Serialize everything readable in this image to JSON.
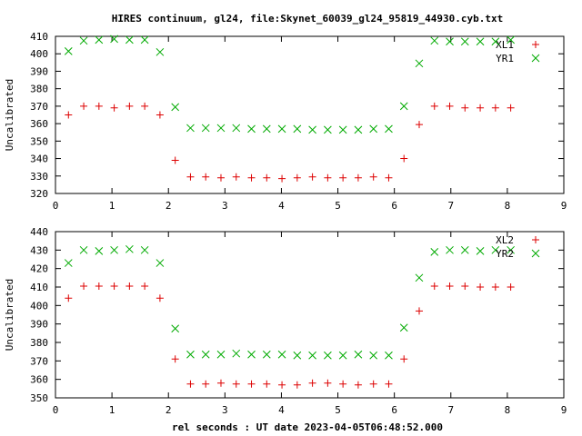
{
  "chart_data": {
    "title": "HIRES continuum, gl24, file:Skynet_60039_gl24_95819_44930.cyb.txt",
    "xlabel": "rel seconds : UT date 2023-04-05T06:48:52.000",
    "panels": [
      {
        "type": "scatter",
        "ylabel": "Uncalibrated",
        "xlim": [
          0,
          9
        ],
        "ylim": [
          320,
          410
        ],
        "xticks": [
          0,
          1,
          2,
          3,
          4,
          5,
          6,
          7,
          8,
          9
        ],
        "yticks": [
          320,
          330,
          340,
          350,
          360,
          370,
          380,
          390,
          400,
          410
        ],
        "legend": "top-right",
        "series": [
          {
            "name": "XL1",
            "marker": "plus",
            "color": "#dd0000",
            "x": [
              0.23,
              0.5,
              0.77,
              1.04,
              1.31,
              1.58,
              1.85,
              2.12,
              2.39,
              2.66,
              2.93,
              3.2,
              3.47,
              3.74,
              4.01,
              4.28,
              4.55,
              4.82,
              5.09,
              5.36,
              5.63,
              5.9,
              6.17,
              6.44,
              6.71,
              6.98,
              7.25,
              7.52,
              7.79,
              8.06
            ],
            "y": [
              365,
              370,
              370,
              369,
              370,
              370,
              365,
              339,
              329.5,
              329.5,
              329,
              329.5,
              329,
              329,
              328.5,
              329,
              329.5,
              329,
              329,
              329,
              329.5,
              329,
              340,
              359.5,
              370,
              370,
              369,
              369,
              369,
              369
            ]
          },
          {
            "name": "YR1",
            "marker": "cross",
            "color": "#00aa00",
            "x": [
              0.23,
              0.5,
              0.77,
              1.04,
              1.31,
              1.58,
              1.85,
              2.12,
              2.39,
              2.66,
              2.93,
              3.2,
              3.47,
              3.74,
              4.01,
              4.28,
              4.55,
              4.82,
              5.09,
              5.36,
              5.63,
              5.9,
              6.17,
              6.44,
              6.71,
              6.98,
              7.25,
              7.52,
              7.79,
              8.06
            ],
            "y": [
              401.5,
              407.5,
              408,
              408.5,
              408,
              408,
              401,
              369.5,
              357.5,
              357.5,
              357.5,
              357.5,
              357,
              357,
              357,
              357,
              356.5,
              356.5,
              356.5,
              356.5,
              357,
              357,
              370,
              394.5,
              407.5,
              407,
              407,
              407,
              407,
              408
            ]
          }
        ]
      },
      {
        "type": "scatter",
        "ylabel": "Uncalibrated",
        "xlim": [
          0,
          9
        ],
        "ylim": [
          350,
          440
        ],
        "xticks": [
          0,
          1,
          2,
          3,
          4,
          5,
          6,
          7,
          8,
          9
        ],
        "yticks": [
          350,
          360,
          370,
          380,
          390,
          400,
          410,
          420,
          430,
          440
        ],
        "legend": "top-right",
        "series": [
          {
            "name": "XL2",
            "marker": "plus",
            "color": "#dd0000",
            "x": [
              0.23,
              0.5,
              0.77,
              1.04,
              1.31,
              1.58,
              1.85,
              2.12,
              2.39,
              2.66,
              2.93,
              3.2,
              3.47,
              3.74,
              4.01,
              4.28,
              4.55,
              4.82,
              5.09,
              5.36,
              5.63,
              5.9,
              6.17,
              6.44,
              6.71,
              6.98,
              7.25,
              7.52,
              7.79,
              8.06
            ],
            "y": [
              404,
              410.5,
              410.5,
              410.5,
              410.5,
              410.5,
              404,
              371,
              357.5,
              357.5,
              358,
              357.5,
              357.5,
              357.5,
              357,
              357,
              358,
              358,
              357.5,
              357,
              357.5,
              357.5,
              371,
              397,
              410.5,
              410.5,
              410.5,
              410,
              410,
              410
            ]
          },
          {
            "name": "YR2",
            "marker": "cross",
            "color": "#00aa00",
            "x": [
              0.23,
              0.5,
              0.77,
              1.04,
              1.31,
              1.58,
              1.85,
              2.12,
              2.39,
              2.66,
              2.93,
              3.2,
              3.47,
              3.74,
              4.01,
              4.28,
              4.55,
              4.82,
              5.09,
              5.36,
              5.63,
              5.9,
              6.17,
              6.44,
              6.71,
              6.98,
              7.25,
              7.52,
              7.79,
              8.06
            ],
            "y": [
              423,
              430,
              429.5,
              430,
              430.5,
              430,
              423,
              387.5,
              373.5,
              373.5,
              373.5,
              374,
              373.5,
              373.5,
              373.5,
              373,
              373,
              373,
              373,
              373.5,
              373,
              373,
              388,
              415,
              429,
              430,
              430,
              429.5,
              430,
              430
            ]
          }
        ]
      }
    ]
  }
}
